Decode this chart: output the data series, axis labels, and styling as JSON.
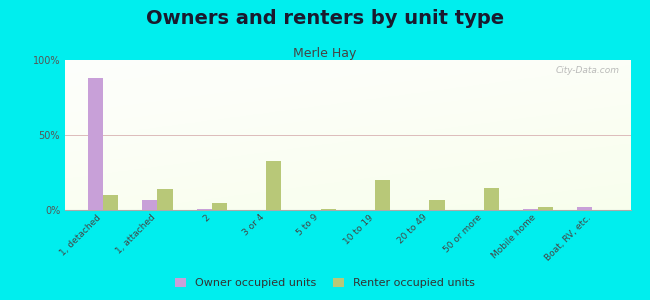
{
  "title": "Owners and renters by unit type",
  "subtitle": "Merle Hay",
  "categories": [
    "1, detached",
    "1, attached",
    "2",
    "3 or 4",
    "5 to 9",
    "10 to 19",
    "20 to 49",
    "50 or more",
    "Mobile home",
    "Boat, RV, etc."
  ],
  "owner_values": [
    88,
    7,
    1,
    0,
    0,
    0,
    0,
    0,
    1,
    2
  ],
  "renter_values": [
    10,
    14,
    5,
    33,
    1,
    20,
    7,
    15,
    2,
    0
  ],
  "owner_color": "#c8a0d8",
  "renter_color": "#b8c878",
  "background_color": "#00eeee",
  "ylim": [
    0,
    100
  ],
  "yticks": [
    0,
    50,
    100
  ],
  "ytick_labels": [
    "0%",
    "50%",
    "100%"
  ],
  "bar_width": 0.28,
  "legend_owner": "Owner occupied units",
  "legend_renter": "Renter occupied units",
  "title_fontsize": 14,
  "subtitle_fontsize": 9,
  "watermark": "City-Data.com"
}
